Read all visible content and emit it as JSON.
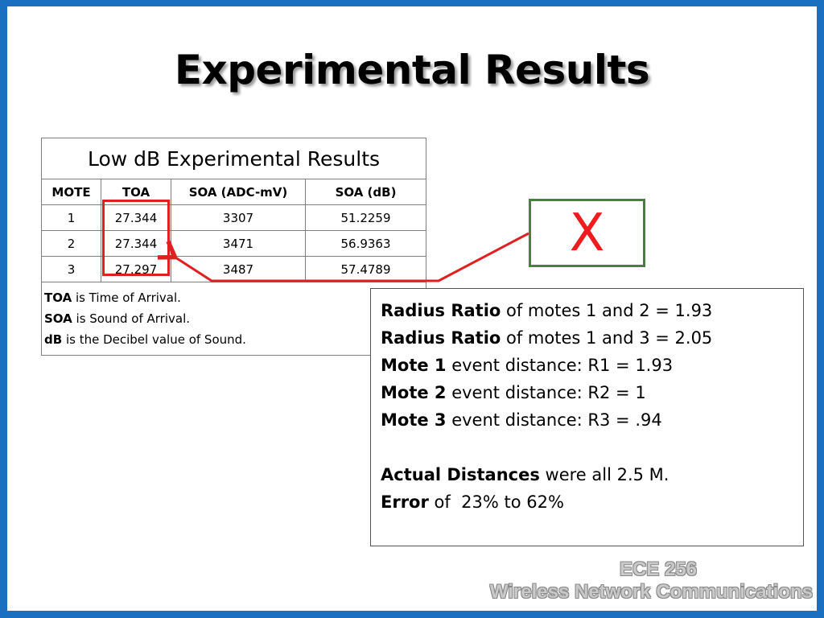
{
  "slide": {
    "title": "Experimental Results"
  },
  "table": {
    "caption": "Low dB Experimental Results",
    "headers": [
      "MOTE",
      "TOA",
      "SOA (ADC-mV)",
      "SOA (dB)"
    ],
    "rows": [
      [
        "1",
        "27.344",
        "3307",
        "51.2259"
      ],
      [
        "2",
        "27.344",
        "3471",
        "56.9363"
      ],
      [
        "3",
        "27.297",
        "3487",
        "57.4789"
      ]
    ],
    "notes": [
      {
        "term": "TOA",
        "text": " is Time of Arrival."
      },
      {
        "term": "SOA",
        "text": " is Sound of Arrival."
      },
      {
        "term": "dB",
        "text": " is the Decibel value of Sound."
      }
    ]
  },
  "marker": {
    "symbol": "X",
    "symbol_color": "#ee1c1c",
    "box_border_color": "#4a7e42",
    "arrow_color": "#e02020"
  },
  "info": {
    "lines": [
      {
        "bold": "Radius Ratio",
        "text": " of motes 1 and 2 = 1.93"
      },
      {
        "bold": "Radius Ratio",
        "text": " of motes 1 and 3 = 2.05"
      },
      {
        "bold": "Mote 1",
        "text": " event distance: R1 = 1.93"
      },
      {
        "bold": "Mote 2",
        "text": " event distance: R2 = 1"
      },
      {
        "bold": "Mote 3",
        "text": " event distance: R3 = .94"
      }
    ],
    "summary": [
      {
        "bold": "Actual Distances",
        "text": " were all 2.5 M."
      },
      {
        "bold": "Error",
        "text": " of  23% to 62%"
      }
    ]
  },
  "footer": {
    "course": "ECE 256",
    "name": "Wireless Network Communications"
  },
  "colors": {
    "frame": "#1b6fc1",
    "background": "#ffffff"
  }
}
